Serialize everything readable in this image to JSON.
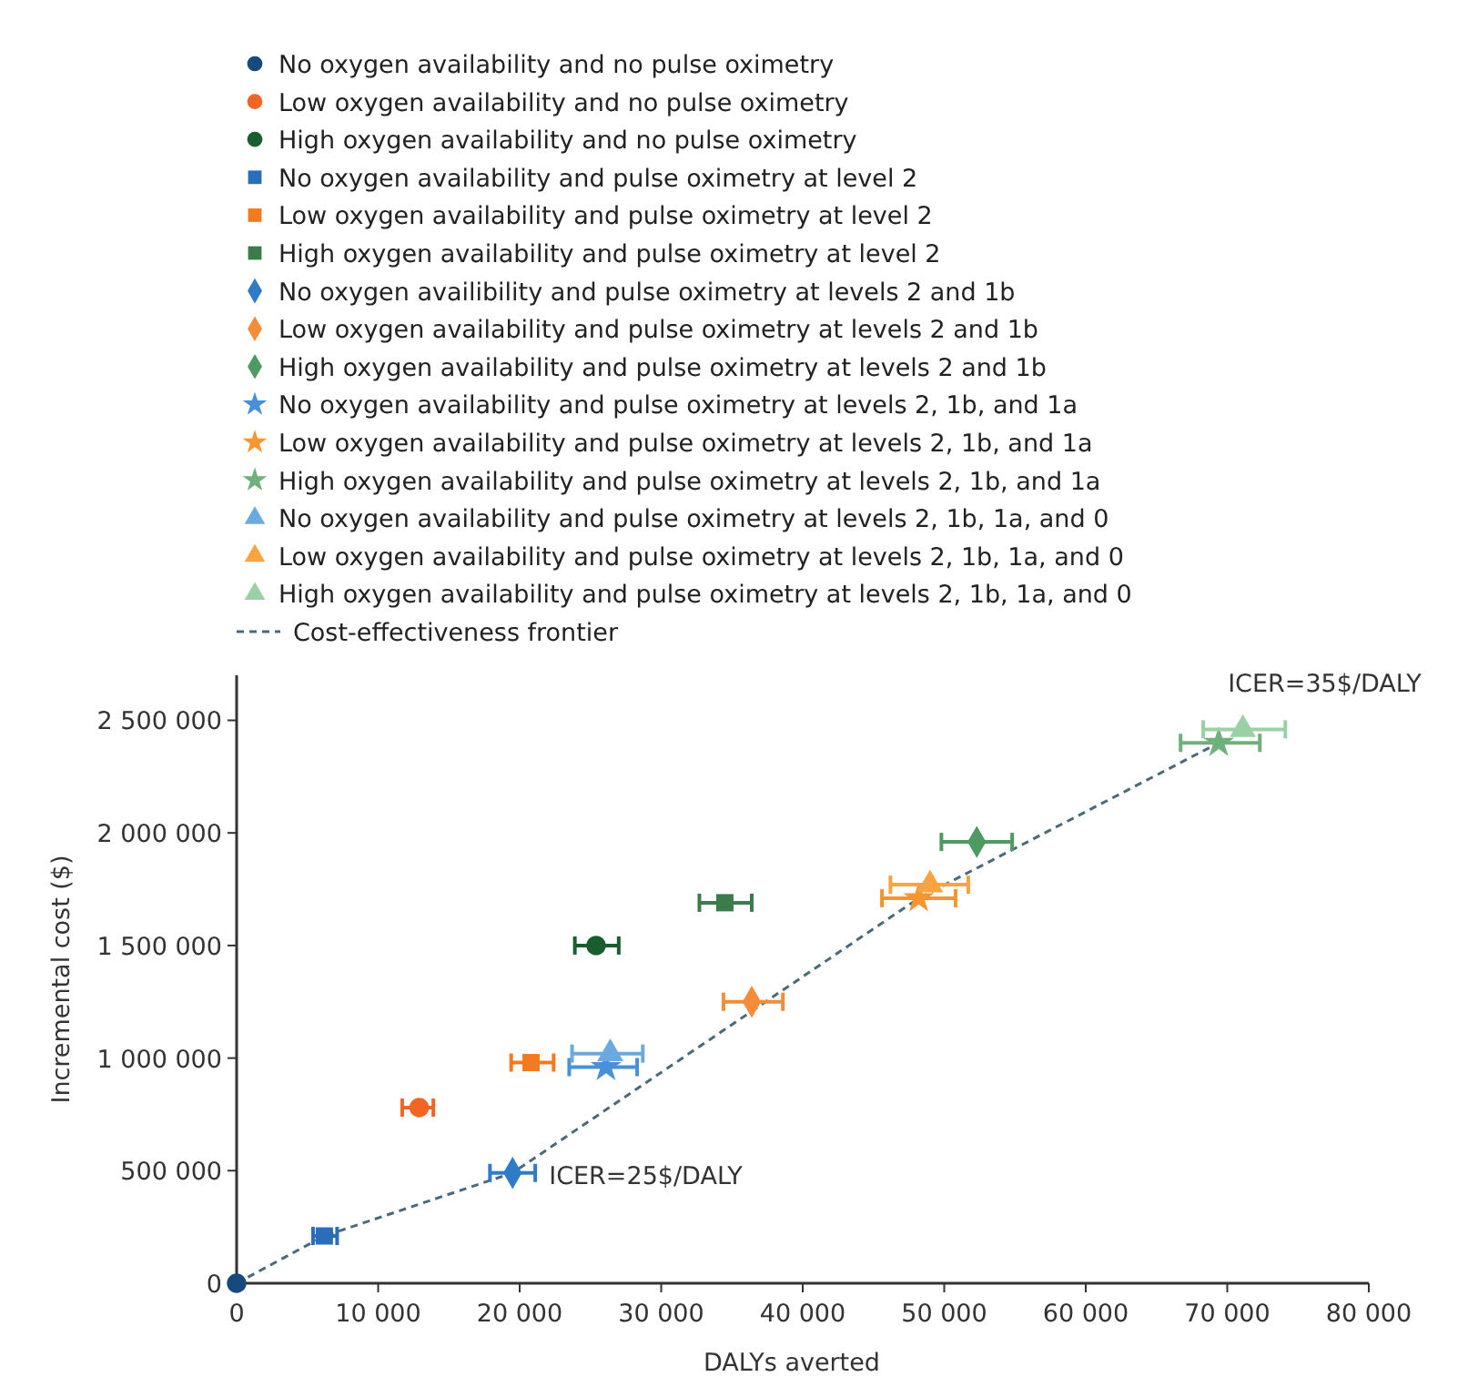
{
  "chart_data": {
    "type": "scatter",
    "xlabel": "DALYs averted",
    "ylabel": "Incremental cost ($)",
    "xlim": [
      0,
      80000
    ],
    "ylim": [
      0,
      2700000
    ],
    "xticks": [
      0,
      {
        "value": 10000,
        "label": "10 000"
      },
      {
        "value": 20000,
        "label": "20 000"
      },
      {
        "value": 30000,
        "label": "30 000"
      },
      {
        "value": 40000,
        "label": "40 000"
      },
      {
        "value": 50000,
        "label": "50 000"
      },
      {
        "value": 60000,
        "label": "60 000"
      },
      {
        "value": 70000,
        "label": "70 000"
      },
      {
        "value": 80000,
        "label": "80 000"
      }
    ],
    "yticks": [
      0,
      {
        "value": 500000,
        "label": "500 000"
      },
      {
        "value": 1000000,
        "label": "1 000 000"
      },
      {
        "value": 1500000,
        "label": "1 500 000"
      },
      {
        "value": 2000000,
        "label": "2 000 000"
      },
      {
        "value": 2500000,
        "label": "2 500 000"
      }
    ],
    "legend": "top",
    "grid": false,
    "series": [
      {
        "name": "No oxygen availability and no pulse oximetry",
        "color": "#174a7c",
        "marker": "circle",
        "x": [
          0
        ],
        "values": [
          0
        ]
      },
      {
        "name": "Low oxygen availability and no pulse oximetry",
        "color": "#f26522",
        "marker": "circle",
        "x": [
          12900
        ],
        "values": [
          780000
        ],
        "xerrors": [
          [
            11700,
            13900
          ]
        ]
      },
      {
        "name": "High oxygen availability and no pulse oximetry",
        "color": "#1a5e30",
        "marker": "circle",
        "x": [
          25400
        ],
        "values": [
          1500000
        ],
        "xerrors": [
          [
            23900,
            27000
          ]
        ]
      },
      {
        "name": "No oxygen availability and pulse oximetry at level 2",
        "color": "#2a6ebb",
        "marker": "square",
        "x": [
          6200
        ],
        "values": [
          210000
        ],
        "xerrors": [
          [
            5400,
            7100
          ]
        ]
      },
      {
        "name": "Low oxygen availability and pulse oximetry at level 2",
        "color": "#f47a20",
        "marker": "square",
        "x": [
          20800
        ],
        "values": [
          980000
        ],
        "xerrors": [
          [
            19400,
            22400
          ]
        ]
      },
      {
        "name": "High oxygen availability and pulse oximetry at level 2",
        "color": "#3b7d4a",
        "marker": "square",
        "x": [
          34500
        ],
        "values": [
          1690000
        ],
        "xerrors": [
          [
            32700,
            36400
          ]
        ]
      },
      {
        "name": "No oxygen availibility and pulse oximetry at levels 2 and 1b",
        "color": "#2f7bc8",
        "marker": "diamond",
        "x": [
          19500
        ],
        "values": [
          490000
        ],
        "xerrors": [
          [
            17900,
            21100
          ]
        ]
      },
      {
        "name": "Low oxygen availability and pulse oximetry at levels 2 and 1b",
        "color": "#f58c3a",
        "marker": "diamond",
        "x": [
          36400
        ],
        "values": [
          1250000
        ],
        "xerrors": [
          [
            34400,
            38600
          ]
        ]
      },
      {
        "name": "High oxygen availability and pulse oximetry at levels 2 and 1b",
        "color": "#4e9a62",
        "marker": "diamond",
        "x": [
          52300
        ],
        "values": [
          1960000
        ],
        "xerrors": [
          [
            49800,
            54800
          ]
        ]
      },
      {
        "name": "No oxygen availability and pulse oximetry at levels 2, 1b, and 1a",
        "color": "#4a90d9",
        "marker": "star",
        "x": [
          26100
        ],
        "values": [
          960000
        ],
        "xerrors": [
          [
            23500,
            28300
          ]
        ]
      },
      {
        "name": "Low oxygen availability and pulse oximetry at levels 2, 1b, and 1a",
        "color": "#f7952e",
        "marker": "star",
        "x": [
          48200
        ],
        "values": [
          1710000
        ],
        "xerrors": [
          [
            45600,
            50800
          ]
        ]
      },
      {
        "name": "High oxygen availability and pulse oximetry at levels 2, 1b, and 1a",
        "color": "#6fb07c",
        "marker": "star",
        "x": [
          69400
        ],
        "values": [
          2400000
        ],
        "xerrors": [
          [
            66700,
            72300
          ]
        ]
      },
      {
        "name": "No oxygen availability and pulse oximetry at levels 2, 1b, 1a, and 0",
        "color": "#6aaae0",
        "marker": "triangle",
        "x": [
          26400
        ],
        "values": [
          1020000
        ],
        "xerrors": [
          [
            23700,
            28700
          ]
        ]
      },
      {
        "name": "Low oxygen availability and pulse oximetry at levels 2, 1b, 1a, and 0",
        "color": "#f9a440",
        "marker": "triangle",
        "x": [
          49000
        ],
        "values": [
          1770000
        ],
        "xerrors": [
          [
            46200,
            51700
          ]
        ]
      },
      {
        "name": "High oxygen availability and pulse oximetry at levels 2, 1b, 1a, and 0",
        "color": "#9bd0a5",
        "marker": "triangle",
        "x": [
          71100
        ],
        "values": [
          2460000
        ],
        "xerrors": [
          [
            68300,
            74100
          ]
        ]
      },
      {
        "name": "Cost-effectiveness frontier",
        "type": "line",
        "color": "#4a6a7a",
        "line_style": "dashed",
        "marker": "none",
        "x": [
          0,
          6200,
          19500,
          48200,
          69400
        ],
        "values": [
          0,
          210000,
          490000,
          1710000,
          2400000
        ]
      }
    ],
    "annotations": [
      {
        "text": "ICER=25$/DALY",
        "x": 19500,
        "y": 490000
      },
      {
        "text": "ICER=35$/DALY",
        "x": 69400,
        "y": 2400000
      }
    ]
  }
}
